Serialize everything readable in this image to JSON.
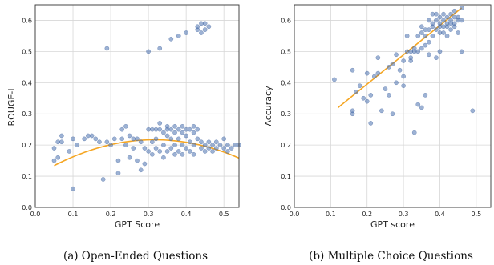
{
  "chart_data": [
    {
      "type": "scatter",
      "caption": "(a) Open-Ended Questions",
      "xlabel": "GPT Score",
      "ylabel": "ROUGE-L",
      "xlim": [
        0.0,
        0.54
      ],
      "ylim": [
        0.0,
        0.65
      ],
      "xticks": [
        "0.0",
        "0.1",
        "0.2",
        "0.3",
        "0.4",
        "0.5"
      ],
      "yticks": [
        "0.0",
        "0.1",
        "0.2",
        "0.3",
        "0.4",
        "0.5",
        "0.6"
      ],
      "grid": true,
      "point_color": "#4c72b0",
      "fit_color": "#f5a623",
      "fit_line": {
        "kind": "quadratic",
        "coef": [
          -1.17,
          0.74,
          0.1
        ]
      },
      "points": [
        [
          0.05,
          0.15
        ],
        [
          0.05,
          0.19
        ],
        [
          0.06,
          0.16
        ],
        [
          0.06,
          0.21
        ],
        [
          0.07,
          0.23
        ],
        [
          0.07,
          0.21
        ],
        [
          0.09,
          0.18
        ],
        [
          0.1,
          0.06
        ],
        [
          0.1,
          0.22
        ],
        [
          0.11,
          0.2
        ],
        [
          0.13,
          0.22
        ],
        [
          0.14,
          0.23
        ],
        [
          0.15,
          0.23
        ],
        [
          0.16,
          0.22
        ],
        [
          0.17,
          0.21
        ],
        [
          0.18,
          0.09
        ],
        [
          0.19,
          0.21
        ],
        [
          0.19,
          0.51
        ],
        [
          0.2,
          0.2
        ],
        [
          0.21,
          0.22
        ],
        [
          0.22,
          0.11
        ],
        [
          0.22,
          0.15
        ],
        [
          0.23,
          0.22
        ],
        [
          0.23,
          0.25
        ],
        [
          0.24,
          0.26
        ],
        [
          0.24,
          0.2
        ],
        [
          0.25,
          0.23
        ],
        [
          0.25,
          0.16
        ],
        [
          0.26,
          0.22
        ],
        [
          0.26,
          0.19
        ],
        [
          0.27,
          0.22
        ],
        [
          0.27,
          0.15
        ],
        [
          0.28,
          0.12
        ],
        [
          0.28,
          0.21
        ],
        [
          0.29,
          0.14
        ],
        [
          0.29,
          0.19
        ],
        [
          0.3,
          0.25
        ],
        [
          0.3,
          0.18
        ],
        [
          0.3,
          0.5
        ],
        [
          0.31,
          0.25
        ],
        [
          0.31,
          0.21
        ],
        [
          0.31,
          0.17
        ],
        [
          0.32,
          0.25
        ],
        [
          0.32,
          0.19
        ],
        [
          0.32,
          0.22
        ],
        [
          0.33,
          0.25
        ],
        [
          0.33,
          0.27
        ],
        [
          0.33,
          0.18
        ],
        [
          0.33,
          0.51
        ],
        [
          0.34,
          0.24
        ],
        [
          0.34,
          0.2
        ],
        [
          0.34,
          0.16
        ],
        [
          0.35,
          0.26
        ],
        [
          0.35,
          0.25
        ],
        [
          0.35,
          0.23
        ],
        [
          0.35,
          0.18
        ],
        [
          0.36,
          0.25
        ],
        [
          0.36,
          0.22
        ],
        [
          0.36,
          0.19
        ],
        [
          0.36,
          0.54
        ],
        [
          0.37,
          0.24
        ],
        [
          0.37,
          0.26
        ],
        [
          0.37,
          0.2
        ],
        [
          0.37,
          0.17
        ],
        [
          0.38,
          0.25
        ],
        [
          0.38,
          0.22
        ],
        [
          0.38,
          0.18
        ],
        [
          0.38,
          0.55
        ],
        [
          0.39,
          0.26
        ],
        [
          0.39,
          0.24
        ],
        [
          0.39,
          0.2
        ],
        [
          0.39,
          0.17
        ],
        [
          0.4,
          0.25
        ],
        [
          0.4,
          0.23
        ],
        [
          0.4,
          0.19
        ],
        [
          0.4,
          0.56
        ],
        [
          0.41,
          0.25
        ],
        [
          0.41,
          0.21
        ],
        [
          0.41,
          0.18
        ],
        [
          0.42,
          0.26
        ],
        [
          0.42,
          0.24
        ],
        [
          0.42,
          0.2
        ],
        [
          0.42,
          0.17
        ],
        [
          0.43,
          0.25
        ],
        [
          0.43,
          0.22
        ],
        [
          0.43,
          0.57
        ],
        [
          0.43,
          0.58
        ],
        [
          0.44,
          0.19
        ],
        [
          0.44,
          0.21
        ],
        [
          0.44,
          0.56
        ],
        [
          0.44,
          0.59
        ],
        [
          0.45,
          0.18
        ],
        [
          0.45,
          0.2
        ],
        [
          0.45,
          0.57
        ],
        [
          0.45,
          0.59
        ],
        [
          0.46,
          0.19
        ],
        [
          0.46,
          0.21
        ],
        [
          0.46,
          0.58
        ],
        [
          0.47,
          0.2
        ],
        [
          0.47,
          0.18
        ],
        [
          0.48,
          0.19
        ],
        [
          0.48,
          0.21
        ],
        [
          0.49,
          0.2
        ],
        [
          0.5,
          0.22
        ],
        [
          0.5,
          0.19
        ],
        [
          0.51,
          0.2
        ],
        [
          0.52,
          0.19
        ],
        [
          0.53,
          0.2
        ],
        [
          0.54,
          0.2
        ],
        [
          0.51,
          0.18
        ]
      ]
    },
    {
      "type": "scatter",
      "caption": "(b) Multiple Choice Questions",
      "xlabel": "GPT score",
      "ylabel": "Accuracy",
      "xlim": [
        0.0,
        0.54
      ],
      "ylim": [
        0.0,
        0.65
      ],
      "xticks": [
        "0.0",
        "0.1",
        "0.2",
        "0.3",
        "0.4",
        "0.5"
      ],
      "yticks": [
        "0.0",
        "0.1",
        "0.2",
        "0.3",
        "0.4",
        "0.5",
        "0.6"
      ],
      "grid": true,
      "point_color": "#4c72b0",
      "fit_color": "#f5a623",
      "fit_line": {
        "kind": "linear",
        "from": [
          0.12,
          0.32
        ],
        "to": [
          0.46,
          0.64
        ]
      },
      "points": [
        [
          0.11,
          0.41
        ],
        [
          0.16,
          0.3
        ],
        [
          0.16,
          0.31
        ],
        [
          0.16,
          0.44
        ],
        [
          0.17,
          0.37
        ],
        [
          0.18,
          0.39
        ],
        [
          0.19,
          0.35
        ],
        [
          0.2,
          0.34
        ],
        [
          0.2,
          0.43
        ],
        [
          0.21,
          0.27
        ],
        [
          0.21,
          0.36
        ],
        [
          0.22,
          0.42
        ],
        [
          0.23,
          0.43
        ],
        [
          0.23,
          0.48
        ],
        [
          0.24,
          0.31
        ],
        [
          0.25,
          0.38
        ],
        [
          0.26,
          0.36
        ],
        [
          0.27,
          0.3
        ],
        [
          0.27,
          0.46
        ],
        [
          0.28,
          0.4
        ],
        [
          0.28,
          0.49
        ],
        [
          0.29,
          0.44
        ],
        [
          0.3,
          0.39
        ],
        [
          0.3,
          0.47
        ],
        [
          0.31,
          0.5
        ],
        [
          0.31,
          0.55
        ],
        [
          0.32,
          0.5
        ],
        [
          0.32,
          0.47
        ],
        [
          0.33,
          0.5
        ],
        [
          0.33,
          0.51
        ],
        [
          0.33,
          0.24
        ],
        [
          0.34,
          0.33
        ],
        [
          0.34,
          0.55
        ],
        [
          0.35,
          0.51
        ],
        [
          0.35,
          0.32
        ],
        [
          0.35,
          0.56
        ],
        [
          0.36,
          0.57
        ],
        [
          0.36,
          0.36
        ],
        [
          0.37,
          0.6
        ],
        [
          0.37,
          0.53
        ],
        [
          0.37,
          0.49
        ],
        [
          0.38,
          0.58
        ],
        [
          0.38,
          0.62
        ],
        [
          0.38,
          0.55
        ],
        [
          0.39,
          0.6
        ],
        [
          0.39,
          0.57
        ],
        [
          0.39,
          0.48
        ],
        [
          0.4,
          0.59
        ],
        [
          0.4,
          0.61
        ],
        [
          0.4,
          0.56
        ],
        [
          0.4,
          0.5
        ],
        [
          0.41,
          0.6
        ],
        [
          0.41,
          0.58
        ],
        [
          0.41,
          0.62
        ],
        [
          0.42,
          0.59
        ],
        [
          0.42,
          0.61
        ],
        [
          0.42,
          0.55
        ],
        [
          0.43,
          0.6
        ],
        [
          0.43,
          0.57
        ],
        [
          0.43,
          0.62
        ],
        [
          0.44,
          0.59
        ],
        [
          0.44,
          0.58
        ],
        [
          0.44,
          0.63
        ],
        [
          0.45,
          0.6
        ],
        [
          0.45,
          0.61
        ],
        [
          0.45,
          0.56
        ],
        [
          0.46,
          0.6
        ],
        [
          0.46,
          0.64
        ],
        [
          0.46,
          0.5
        ],
        [
          0.34,
          0.5
        ],
        [
          0.35,
          0.58
        ],
        [
          0.36,
          0.52
        ],
        [
          0.37,
          0.57
        ],
        [
          0.38,
          0.59
        ],
        [
          0.39,
          0.62
        ],
        [
          0.4,
          0.58
        ],
        [
          0.41,
          0.56
        ],
        [
          0.42,
          0.58
        ],
        [
          0.43,
          0.59
        ],
        [
          0.44,
          0.61
        ],
        [
          0.49,
          0.31
        ],
        [
          0.3,
          0.42
        ],
        [
          0.26,
          0.45
        ],
        [
          0.32,
          0.48
        ],
        [
          0.36,
          0.55
        ]
      ]
    }
  ]
}
